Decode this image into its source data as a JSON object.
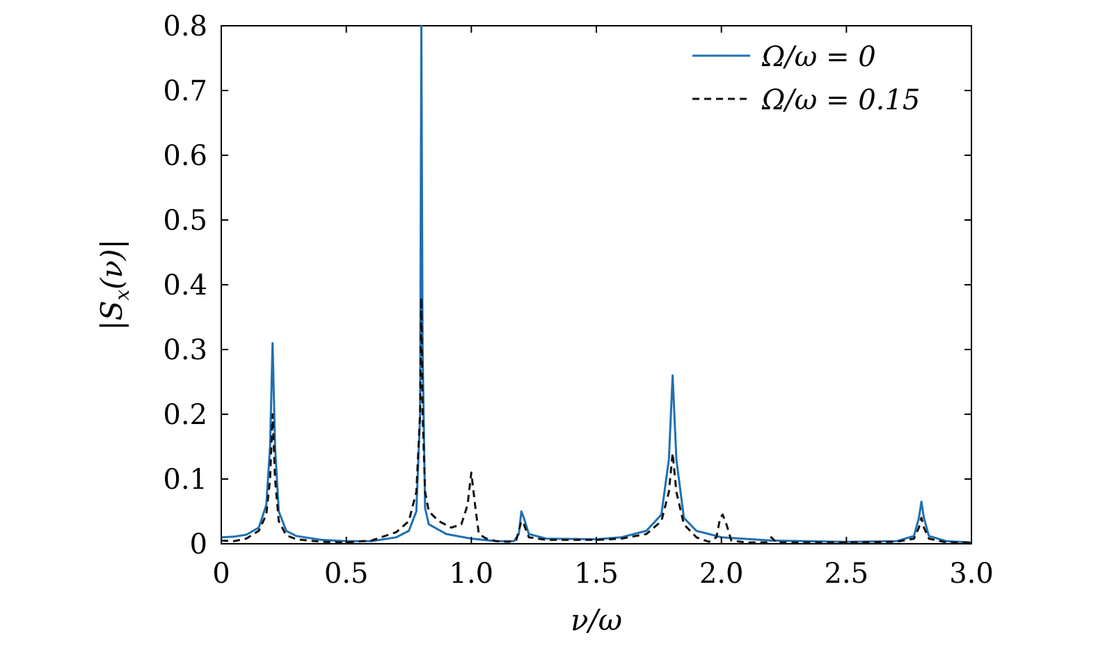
{
  "chart_data": {
    "type": "line",
    "xlabel": "ν/ω",
    "ylabel": "|S_x(ν)|",
    "xlim": [
      0,
      3.0
    ],
    "ylim": [
      0,
      0.8
    ],
    "x_ticks": [
      "0",
      "0.5",
      "1.0",
      "1.5",
      "2.0",
      "2.5",
      "3.0"
    ],
    "y_ticks": [
      "0",
      "0.1",
      "0.2",
      "0.3",
      "0.4",
      "0.5",
      "0.6",
      "0.7",
      "0.8"
    ],
    "grid": false,
    "legend_position": "top-right",
    "series": [
      {
        "name": "Ω/ω = 0",
        "color": "#1f6fb4",
        "style": "solid",
        "points": [
          [
            0.0,
            0.01
          ],
          [
            0.05,
            0.011
          ],
          [
            0.1,
            0.014
          ],
          [
            0.15,
            0.025
          ],
          [
            0.18,
            0.06
          ],
          [
            0.195,
            0.15
          ],
          [
            0.205,
            0.31
          ],
          [
            0.215,
            0.15
          ],
          [
            0.23,
            0.05
          ],
          [
            0.26,
            0.02
          ],
          [
            0.3,
            0.012
          ],
          [
            0.4,
            0.006
          ],
          [
            0.5,
            0.004
          ],
          [
            0.6,
            0.004
          ],
          [
            0.7,
            0.01
          ],
          [
            0.75,
            0.02
          ],
          [
            0.78,
            0.05
          ],
          [
            0.795,
            0.2
          ],
          [
            0.8,
            0.8
          ],
          [
            0.805,
            0.3
          ],
          [
            0.815,
            0.055
          ],
          [
            0.83,
            0.03
          ],
          [
            0.9,
            0.015
          ],
          [
            1.0,
            0.008
          ],
          [
            1.1,
            0.004
          ],
          [
            1.17,
            0.004
          ],
          [
            1.19,
            0.015
          ],
          [
            1.2,
            0.05
          ],
          [
            1.21,
            0.04
          ],
          [
            1.23,
            0.015
          ],
          [
            1.3,
            0.008
          ],
          [
            1.5,
            0.007
          ],
          [
            1.6,
            0.01
          ],
          [
            1.7,
            0.02
          ],
          [
            1.76,
            0.045
          ],
          [
            1.79,
            0.13
          ],
          [
            1.805,
            0.26
          ],
          [
            1.82,
            0.13
          ],
          [
            1.85,
            0.04
          ],
          [
            1.9,
            0.02
          ],
          [
            2.0,
            0.01
          ],
          [
            2.2,
            0.005
          ],
          [
            2.5,
            0.003
          ],
          [
            2.7,
            0.004
          ],
          [
            2.77,
            0.012
          ],
          [
            2.79,
            0.04
          ],
          [
            2.8,
            0.065
          ],
          [
            2.81,
            0.04
          ],
          [
            2.83,
            0.012
          ],
          [
            2.9,
            0.004
          ],
          [
            3.0,
            0.002
          ]
        ]
      },
      {
        "name": "Ω/ω = 0.15",
        "color": "#111111",
        "style": "dashed",
        "points": [
          [
            0.0,
            0.005
          ],
          [
            0.05,
            0.004
          ],
          [
            0.1,
            0.008
          ],
          [
            0.15,
            0.02
          ],
          [
            0.18,
            0.045
          ],
          [
            0.195,
            0.1
          ],
          [
            0.205,
            0.2
          ],
          [
            0.215,
            0.1
          ],
          [
            0.23,
            0.035
          ],
          [
            0.26,
            0.013
          ],
          [
            0.3,
            0.007
          ],
          [
            0.4,
            0.003
          ],
          [
            0.5,
            0.002
          ],
          [
            0.6,
            0.005
          ],
          [
            0.7,
            0.018
          ],
          [
            0.75,
            0.035
          ],
          [
            0.78,
            0.08
          ],
          [
            0.795,
            0.2
          ],
          [
            0.8,
            0.38
          ],
          [
            0.805,
            0.2
          ],
          [
            0.815,
            0.08
          ],
          [
            0.83,
            0.05
          ],
          [
            0.87,
            0.035
          ],
          [
            0.92,
            0.025
          ],
          [
            0.96,
            0.03
          ],
          [
            0.985,
            0.06
          ],
          [
            1.0,
            0.11
          ],
          [
            1.015,
            0.06
          ],
          [
            1.03,
            0.015
          ],
          [
            1.06,
            0.008
          ],
          [
            1.1,
            0.004
          ],
          [
            1.15,
            0.003
          ],
          [
            1.18,
            0.006
          ],
          [
            1.2,
            0.035
          ],
          [
            1.21,
            0.03
          ],
          [
            1.23,
            0.01
          ],
          [
            1.3,
            0.006
          ],
          [
            1.5,
            0.006
          ],
          [
            1.6,
            0.008
          ],
          [
            1.7,
            0.015
          ],
          [
            1.76,
            0.035
          ],
          [
            1.79,
            0.08
          ],
          [
            1.805,
            0.14
          ],
          [
            1.82,
            0.08
          ],
          [
            1.85,
            0.03
          ],
          [
            1.9,
            0.01
          ],
          [
            1.95,
            0.003
          ],
          [
            1.98,
            0.01
          ],
          [
            1.995,
            0.04
          ],
          [
            2.005,
            0.045
          ],
          [
            2.02,
            0.03
          ],
          [
            2.04,
            0.005
          ],
          [
            2.1,
            0.002
          ],
          [
            2.18,
            0.002
          ],
          [
            2.2,
            0.01
          ],
          [
            2.22,
            0.002
          ],
          [
            2.5,
            0.002
          ],
          [
            2.7,
            0.003
          ],
          [
            2.77,
            0.008
          ],
          [
            2.79,
            0.025
          ],
          [
            2.8,
            0.04
          ],
          [
            2.81,
            0.025
          ],
          [
            2.83,
            0.008
          ],
          [
            2.9,
            0.002
          ],
          [
            2.99,
            0.002
          ],
          [
            3.0,
            0.006
          ]
        ]
      }
    ]
  }
}
